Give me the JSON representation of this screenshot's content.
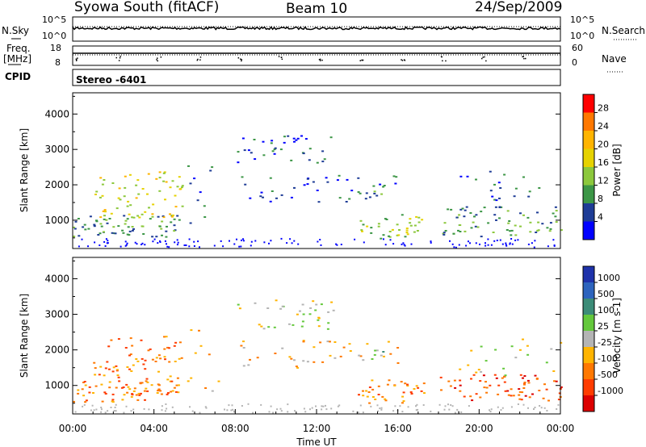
{
  "header": {
    "station": "Syowa South (fitACF)",
    "beam": "Beam 10",
    "date": "24/Sep/2009"
  },
  "left_labels": {
    "nsky": "N.Sky",
    "freq": "Freq.",
    "freq_unit": "[MHz]",
    "cpid": "CPID"
  },
  "right_labels": {
    "nsearch": "N.Search",
    "nave": "Nave"
  },
  "stereo_label": "Stereo -6401",
  "chart_data": [
    {
      "type": "line",
      "name": "noise",
      "left_axis_ticks": [
        "10^5",
        "10^0"
      ],
      "right_axis_ticks": [
        "10^5",
        "10^0"
      ],
      "xlim": [
        0,
        24
      ]
    },
    {
      "type": "line",
      "name": "frequency-nave",
      "left_axis_ticks": [
        "18",
        "8"
      ],
      "right_axis_ticks": [
        "60",
        "0"
      ],
      "xlim": [
        0,
        24
      ]
    },
    {
      "type": "heatmap",
      "name": "power",
      "ylabel": "Slant Range [km]",
      "xlim": [
        0,
        24
      ],
      "ylim": [
        200,
        4600
      ],
      "yticks": [
        1000,
        2000,
        3000,
        4000
      ],
      "colorbar": {
        "label": "Power [dB]",
        "ticks": [
          "28",
          "24",
          "20",
          "16",
          "12",
          "8",
          "4"
        ],
        "colors": [
          "#ff0000",
          "#ff7800",
          "#ffb400",
          "#e6d200",
          "#8cc83c",
          "#3c9646",
          "#1e3c96",
          "#0000ff"
        ]
      }
    },
    {
      "type": "heatmap",
      "name": "velocity",
      "ylabel": "Slant Range [km]",
      "xlabel": "Time UT",
      "xlim": [
        0,
        24
      ],
      "ylim": [
        200,
        4600
      ],
      "yticks": [
        1000,
        2000,
        3000,
        4000
      ],
      "xticks": [
        "00:00",
        "04:00",
        "08:00",
        "12:00",
        "16:00",
        "20:00",
        "00:00"
      ],
      "colorbar": {
        "label": "Velocity [m s-1]",
        "ticks": [
          "1000",
          "500",
          "100",
          "25",
          "-25",
          "-100",
          "-500",
          "-1000"
        ],
        "colors": [
          "#1e32aa",
          "#2d64be",
          "#3c8c78",
          "#64c83c",
          "#b4b4b4",
          "#ffb400",
          "#ff7800",
          "#ff3c00",
          "#dc0000"
        ]
      }
    }
  ],
  "colors": {
    "frame": "#000000",
    "background": "#ffffff"
  }
}
